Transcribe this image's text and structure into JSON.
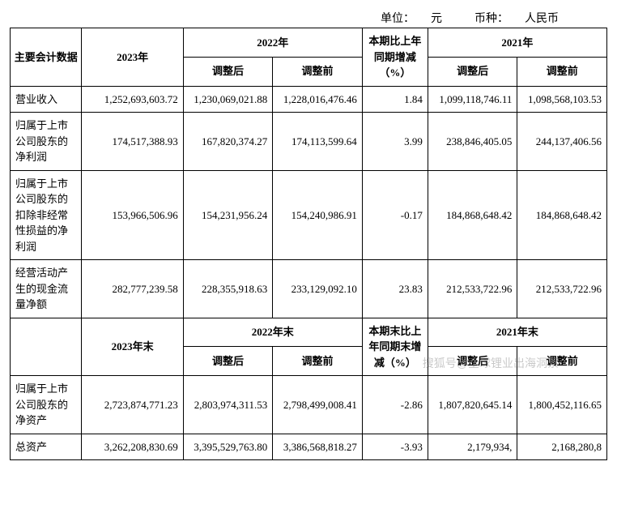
{
  "meta": {
    "unit_label": "单位：",
    "unit_value": "元",
    "currency_label": "币种：",
    "currency_value": "人民币"
  },
  "headers1": {
    "main": "主要会计数据",
    "col2023": "2023年",
    "col2022": "2022年",
    "delta": "本期比上年同期增减（%）",
    "col2021": "2021年",
    "adj_after": "调整后",
    "adj_before": "调整前"
  },
  "rows1": [
    {
      "label": "营业收入",
      "c2023": "1,252,693,603.72",
      "c2022a": "1,230,069,021.88",
      "c2022b": "1,228,016,476.46",
      "pct": "1.84",
      "c2021a": "1,099,118,746.11",
      "c2021b": "1,098,568,103.53"
    },
    {
      "label": "归属于上市公司股东的净利润",
      "c2023": "174,517,388.93",
      "c2022a": "167,820,374.27",
      "c2022b": "174,113,599.64",
      "pct": "3.99",
      "c2021a": "238,846,405.05",
      "c2021b": "244,137,406.56"
    },
    {
      "label": "归属于上市公司股东的扣除非经常性损益的净利润",
      "c2023": "153,966,506.96",
      "c2022a": "154,231,956.24",
      "c2022b": "154,240,986.91",
      "pct": "-0.17",
      "c2021a": "184,868,648.42",
      "c2021b": "184,868,648.42"
    },
    {
      "label": "经营活动产生的现金流量净额",
      "c2023": "282,777,239.58",
      "c2022a": "228,355,918.63",
      "c2022b": "233,129,092.10",
      "pct": "23.83",
      "c2021a": "212,533,722.96",
      "c2021b": "212,533,722.96"
    }
  ],
  "headers2": {
    "col2023": "2023年末",
    "col2022": "2022年末",
    "delta": "本期末比上年同期末增减（%）",
    "col2021": "2021年末",
    "adj_after": "调整后",
    "adj_before": "调整前"
  },
  "rows2": [
    {
      "label": "归属于上市公司股东的净资产",
      "c2023": "2,723,874,771.23",
      "c2022a": "2,803,974,311.53",
      "c2022b": "2,798,499,008.41",
      "pct": "-2.86",
      "c2021a": "1,807,820,645.14",
      "c2021b": "1,800,452,116.65"
    },
    {
      "label": "总资产",
      "c2023": "3,262,208,830.69",
      "c2022a": "3,395,529,763.80",
      "c2022b": "3,386,568,818.27",
      "pct": "-3.93",
      "c2021a": "2,179,934,",
      "c2021b": "2,168,280,8"
    }
  ],
  "watermark": "搜狐号@全球锂业出海洞察"
}
